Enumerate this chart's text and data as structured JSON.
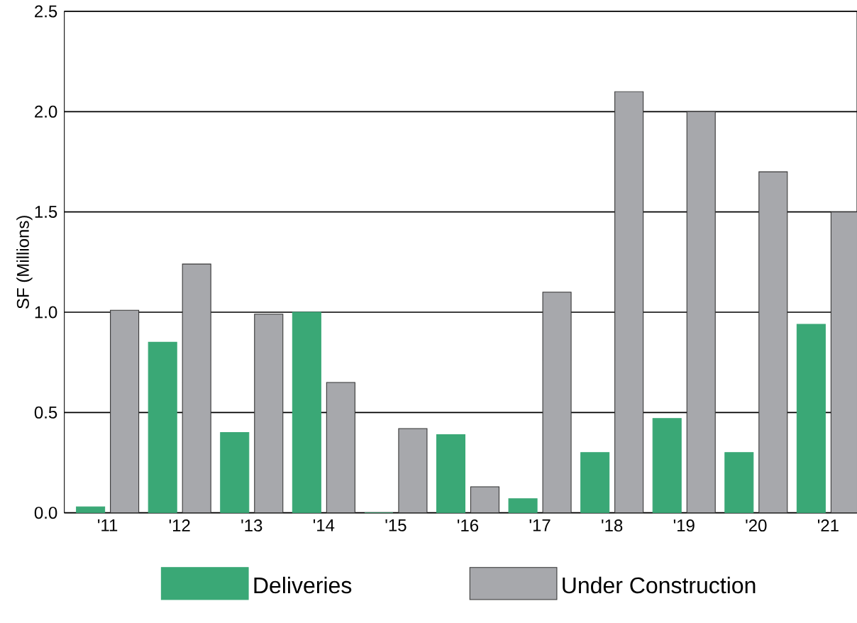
{
  "chart_data": {
    "type": "bar",
    "ylabel": "SF (Millions)",
    "categories": [
      "'11",
      "'12",
      "'13",
      "'14",
      "'15",
      "'16",
      "'17",
      "'18",
      "'19",
      "'20",
      "'21"
    ],
    "series": [
      {
        "name": "Deliveries",
        "color": "#3aa876",
        "values": [
          0.03,
          0.85,
          0.4,
          1.0,
          0.0,
          0.39,
          0.07,
          0.3,
          0.47,
          0.3,
          0.94
        ]
      },
      {
        "name": "Under Construction",
        "color": "#a7a8ac",
        "values": [
          1.01,
          1.24,
          0.99,
          0.65,
          0.42,
          0.13,
          1.1,
          2.1,
          2.0,
          1.7,
          1.5
        ]
      }
    ],
    "ylim": [
      0,
      2.5
    ],
    "yticks": [
      {
        "value": 0,
        "label": "0.0"
      },
      {
        "value": 0.5,
        "label": "0.5"
      },
      {
        "value": 1,
        "label": "1.0"
      },
      {
        "value": 1.5,
        "label": "1.5"
      },
      {
        "value": 2,
        "label": "2.0"
      },
      {
        "value": 2.5,
        "label": "2.5"
      }
    ],
    "grid": "y",
    "legend": "bottom"
  }
}
